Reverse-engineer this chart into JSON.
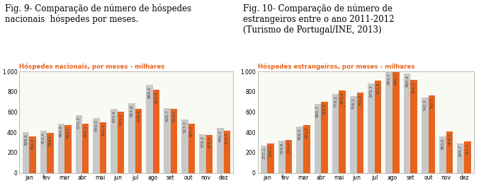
{
  "chart1": {
    "title": "Hóspedes nacionais, por meses - milhares",
    "months": [
      "jan",
      "fev",
      "mar",
      "abr",
      "mai",
      "jun",
      "jul",
      "ago",
      "set",
      "out",
      "nov",
      "dez"
    ],
    "values_2011": [
      398.6,
      413.4,
      484.9,
      570.3,
      540.0,
      633.4,
      684.8,
      869.5,
      638.7,
      527.3,
      379.2,
      440.2
    ],
    "values_2012": [
      361.2,
      396.1,
      468.1,
      484.2,
      502.4,
      603.5,
      634.6,
      818.9,
      634.5,
      484.2,
      375.4,
      414.4
    ],
    "color_2011": "#c8c8c8",
    "color_2012": "#e8641e",
    "title_color": "#e8641e",
    "ylim": [
      0,
      1000
    ],
    "ytick_vals": [
      0,
      200,
      400,
      600,
      800,
      1000
    ]
  },
  "chart2": {
    "title": "Hóspedes estrangeiros, por meses - milhares",
    "months": [
      "jan",
      "fev",
      "mar",
      "abr",
      "mai",
      "jun",
      "jul",
      "ago",
      "set",
      "out",
      "nov",
      "dez"
    ],
    "values_2011": [
      272.1,
      318.8,
      456.5,
      680.7,
      778.2,
      758.2,
      879.3,
      999.7,
      980.4,
      742.2,
      360.6,
      289.7
    ],
    "values_2012": [
      290.2,
      324.4,
      471.2,
      703.8,
      809.4,
      791.6,
      911.8,
      996.7,
      916.3,
      760.5,
      409.1,
      311.7
    ],
    "color_2011": "#c8c8c8",
    "color_2012": "#e8641e",
    "title_color": "#e8641e",
    "ylim": [
      0,
      1000
    ],
    "ytick_vals": [
      0,
      200,
      400,
      600,
      800,
      1000
    ]
  },
  "fig_caption_left": "Fig. 9- Comparação de número de hóspedes\nnacionais  hóspedes por meses.",
  "fig_caption_right": "Fig. 10- Comparação de número de\nestrangeiros entre o ano 2011-2012\n(Turismo de Portugal/INE, 2013)",
  "bar_width": 0.38,
  "value_fontsize": 4.2,
  "box_facecolor": "#fafaf5",
  "box_edgecolor": "#bbbbbb",
  "caption_fontsize": 8.5,
  "axis_fontsize": 5.5,
  "title_fontsize": 6.2
}
